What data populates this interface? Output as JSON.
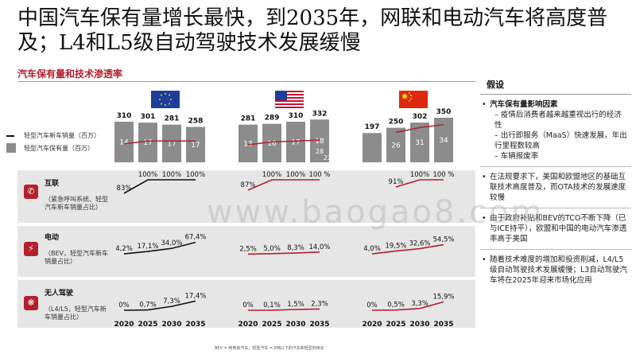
{
  "title": "中国汽车保有量增长最快，到2035年，网联和电动汽车将高度普及；L4和L5级自动驾驶技术发展缓慢",
  "subtitle": "汽车保有量和技术渗透率",
  "legend": {
    "line_label": "轻型汽车新车销量（百万）",
    "bar_label": "轻型汽车保有量（百万）"
  },
  "regions": [
    {
      "name": "EU",
      "flag": "eu-flag-icon"
    },
    {
      "name": "US",
      "flag": "us-flag-icon"
    },
    {
      "name": "CN",
      "flag": "china-flag-icon"
    }
  ],
  "rows": {
    "connected": {
      "title": "互联",
      "desc": "（紧急呼叫系统、轻型汽车新车销量占比）"
    },
    "electric": {
      "title": "电动",
      "desc": "（BEV，轻型汽车新车销量占比）"
    },
    "autonomous": {
      "title": "无人驾驶",
      "desc": "（L4/L5，轻型汽车新车销量占比）"
    }
  },
  "years": [
    "2020",
    "2025",
    "2030",
    "2035"
  ],
  "chart_data": [
    {
      "type": "bar",
      "region": "EU",
      "series": [
        {
          "name": "轻型汽车保有量（百万）",
          "values": [
            310,
            301,
            281,
            258
          ]
        },
        {
          "name": "轻型汽车新车销量（百万）",
          "values": [
            14,
            17,
            17,
            17
          ]
        }
      ]
    },
    {
      "type": "bar",
      "region": "US",
      "series": [
        {
          "name": "轻型汽车保有量（百万）",
          "values": [
            281,
            289,
            310,
            332
          ]
        },
        {
          "name": "轻型汽车新车销量（百万）",
          "values": [
            13,
            16,
            17,
            18
          ]
        }
      ],
      "extra_labels": [
        "28",
        "22"
      ]
    },
    {
      "type": "bar",
      "region": "CN",
      "series": [
        {
          "name": "轻型汽车保有量（百万）",
          "values": [
            197,
            250,
            302,
            350
          ]
        },
        {
          "name": "轻型汽车新车销量（百万）",
          "values": [
            null,
            26,
            31,
            34
          ]
        }
      ]
    },
    {
      "type": "line",
      "region": "EU",
      "metric": "互联",
      "labels": [
        "83%",
        "100%",
        "100%",
        "100%"
      ],
      "values": [
        83,
        100,
        100,
        100
      ]
    },
    {
      "type": "line",
      "region": "US",
      "metric": "互联",
      "labels": [
        "87%",
        "100%",
        "100%",
        "100 %"
      ],
      "values": [
        87,
        100,
        100,
        100
      ]
    },
    {
      "type": "line",
      "region": "CN",
      "metric": "互联",
      "labels": [
        "",
        "91%",
        "100%",
        "100 %"
      ],
      "values": [
        null,
        91,
        100,
        100
      ]
    },
    {
      "type": "line",
      "region": "EU",
      "metric": "电动",
      "labels": [
        "4,2%",
        "17,1%",
        "34,0%",
        "67,4%"
      ],
      "values": [
        4.2,
        17.1,
        34.0,
        67.4
      ]
    },
    {
      "type": "line",
      "region": "US",
      "metric": "电动",
      "labels": [
        "2,5%",
        "5,0%",
        "8,3%",
        "14,0%"
      ],
      "values": [
        2.5,
        5.0,
        8.3,
        14.0
      ]
    },
    {
      "type": "line",
      "region": "CN",
      "metric": "电动",
      "labels": [
        "4,0%",
        "19,5%",
        "32,6%",
        "54,5%"
      ],
      "values": [
        4.0,
        19.5,
        32.6,
        54.5
      ]
    },
    {
      "type": "line",
      "region": "EU",
      "metric": "无人驾驶",
      "labels": [
        "0%",
        "0,7%",
        "7,3%",
        "17,4%"
      ],
      "values": [
        0,
        0.7,
        7.3,
        17.4
      ]
    },
    {
      "type": "line",
      "region": "US",
      "metric": "无人驾驶",
      "labels": [
        "0%",
        "0,1%",
        "1,5%",
        "2,3%"
      ],
      "values": [
        0,
        0.1,
        1.5,
        2.3
      ]
    },
    {
      "type": "line",
      "region": "CN",
      "metric": "无人驾驶",
      "labels": [
        "0%",
        "0,5%",
        "3,3%",
        "15,9%"
      ],
      "values": [
        0,
        0.5,
        3.3,
        15.9
      ]
    }
  ],
  "assumptions": {
    "title": "假设",
    "items": [
      {
        "text": "汽车保有量影响因素",
        "subs": [
          "疫情后消费者越来越重视出行的经济性",
          "出行即服务（MaaS）快速发展，年出行里程数较高",
          "车辆报废率"
        ]
      },
      {
        "text": "在法规要求下，美国和欧盟地区的基础互联技术高度普及，而OTA技术的发展速度较慢",
        "subs": []
      },
      {
        "text": "由于政府补贴和BEV的TCO不断下降（已与ICE持平），欧盟和中国的电动汽车渗透率高于美国",
        "subs": []
      },
      {
        "text": "随着技术难度的增加和投资削减，L4/L5级自动驾驶技术发展缓慢；L3自动驾驶汽车将在2025年迎来市场化应用",
        "subs": []
      }
    ]
  },
  "footnote": "BEV = 纯电动汽车；轻型汽车 = 6吨以下的汽车和轻型商用车",
  "watermark": "www.baogao8.com",
  "colors": {
    "accent": "#b3202d",
    "bar": "#8c8c8c",
    "panel": "#e6e6e6",
    "line_dark": "#111111"
  }
}
